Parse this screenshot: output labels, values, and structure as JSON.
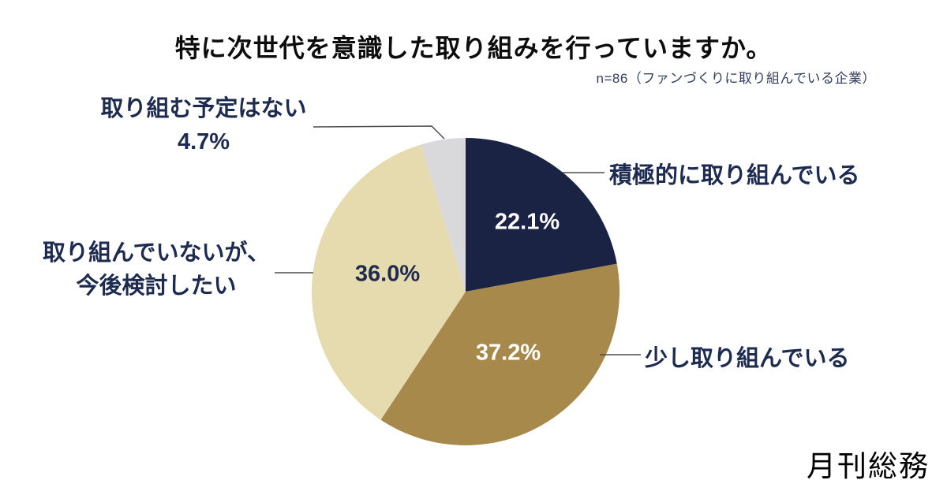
{
  "page": {
    "title": "特に次世代を意識した取り組みを行っていますか。",
    "sample_note": "n=86（ファンづくりに取り組んでいる企業）",
    "logo_text": "月刊総務"
  },
  "chart_data": {
    "type": "pie",
    "title": "特に次世代を意識した取り組みを行っていますか。",
    "subtitle": "n=86（ファンづくりに取り組んでいる企業）",
    "sample_size": 86,
    "start_angle": "top",
    "direction": "clockwise",
    "legend_position": "callout-labels",
    "slices": [
      {
        "label": "積極的に取り組んでいる",
        "value": 22.1,
        "value_label": "22.1%",
        "color": "#1a2343",
        "value_label_color": "#ffffff"
      },
      {
        "label": "少し取り組んでいる",
        "value": 37.2,
        "value_label": "37.2%",
        "color": "#a7894b",
        "value_label_color": "#ffffff"
      },
      {
        "label": "取り組んでいないが、今後検討したい",
        "label_lines": [
          "取り組んでいないが、",
          "今後検討したい"
        ],
        "value": 36.0,
        "value_label": "36.0%",
        "color": "#e6dbae",
        "value_label_color": "#1e2b50"
      },
      {
        "label": "取り組む予定はない",
        "value": 4.7,
        "value_label": "4.7%",
        "color": "#d9d9db",
        "value_label_color": "#1e2b50"
      }
    ],
    "callout_text_color": "#1e2b50",
    "leader_line_color": "#4d4d4d"
  }
}
